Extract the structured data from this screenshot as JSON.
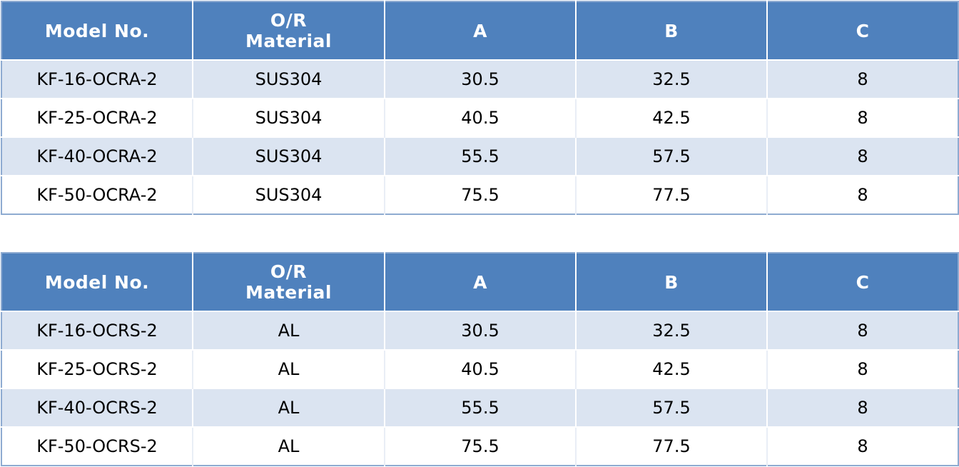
{
  "tables": [
    {
      "headers": {
        "model": "Model No.",
        "material_line1": "O/R",
        "material_line2": "Material",
        "a": "A",
        "b": "B",
        "c": "C"
      },
      "rows": [
        {
          "model": "KF-16-OCRA-2",
          "material": "SUS304",
          "a": "30.5",
          "b": "32.5",
          "c": "8"
        },
        {
          "model": "KF-25-OCRA-2",
          "material": "SUS304",
          "a": "40.5",
          "b": "42.5",
          "c": "8"
        },
        {
          "model": "KF-40-OCRA-2",
          "material": "SUS304",
          "a": "55.5",
          "b": "57.5",
          "c": "8"
        },
        {
          "model": "KF-50-OCRA-2",
          "material": "SUS304",
          "a": "75.5",
          "b": "77.5",
          "c": "8"
        }
      ]
    },
    {
      "headers": {
        "model": "Model No.",
        "material_line1": "O/R",
        "material_line2": "Material",
        "a": "A",
        "b": "B",
        "c": "C"
      },
      "rows": [
        {
          "model": "KF-16-OCRS-2",
          "material": "AL",
          "a": "30.5",
          "b": "32.5",
          "c": "8"
        },
        {
          "model": "KF-25-OCRS-2",
          "material": "AL",
          "a": "40.5",
          "b": "42.5",
          "c": "8"
        },
        {
          "model": "KF-40-OCRS-2",
          "material": "AL",
          "a": "55.5",
          "b": "57.5",
          "c": "8"
        },
        {
          "model": "KF-50-OCRS-2",
          "material": "AL",
          "a": "75.5",
          "b": "77.5",
          "c": "8"
        }
      ]
    }
  ],
  "colors": {
    "header_bg": "#4f81bd",
    "header_text": "#ffffff",
    "band_row_bg": "#dbe4f1",
    "plain_row_bg": "#ffffff",
    "border": "#8eabd1"
  }
}
